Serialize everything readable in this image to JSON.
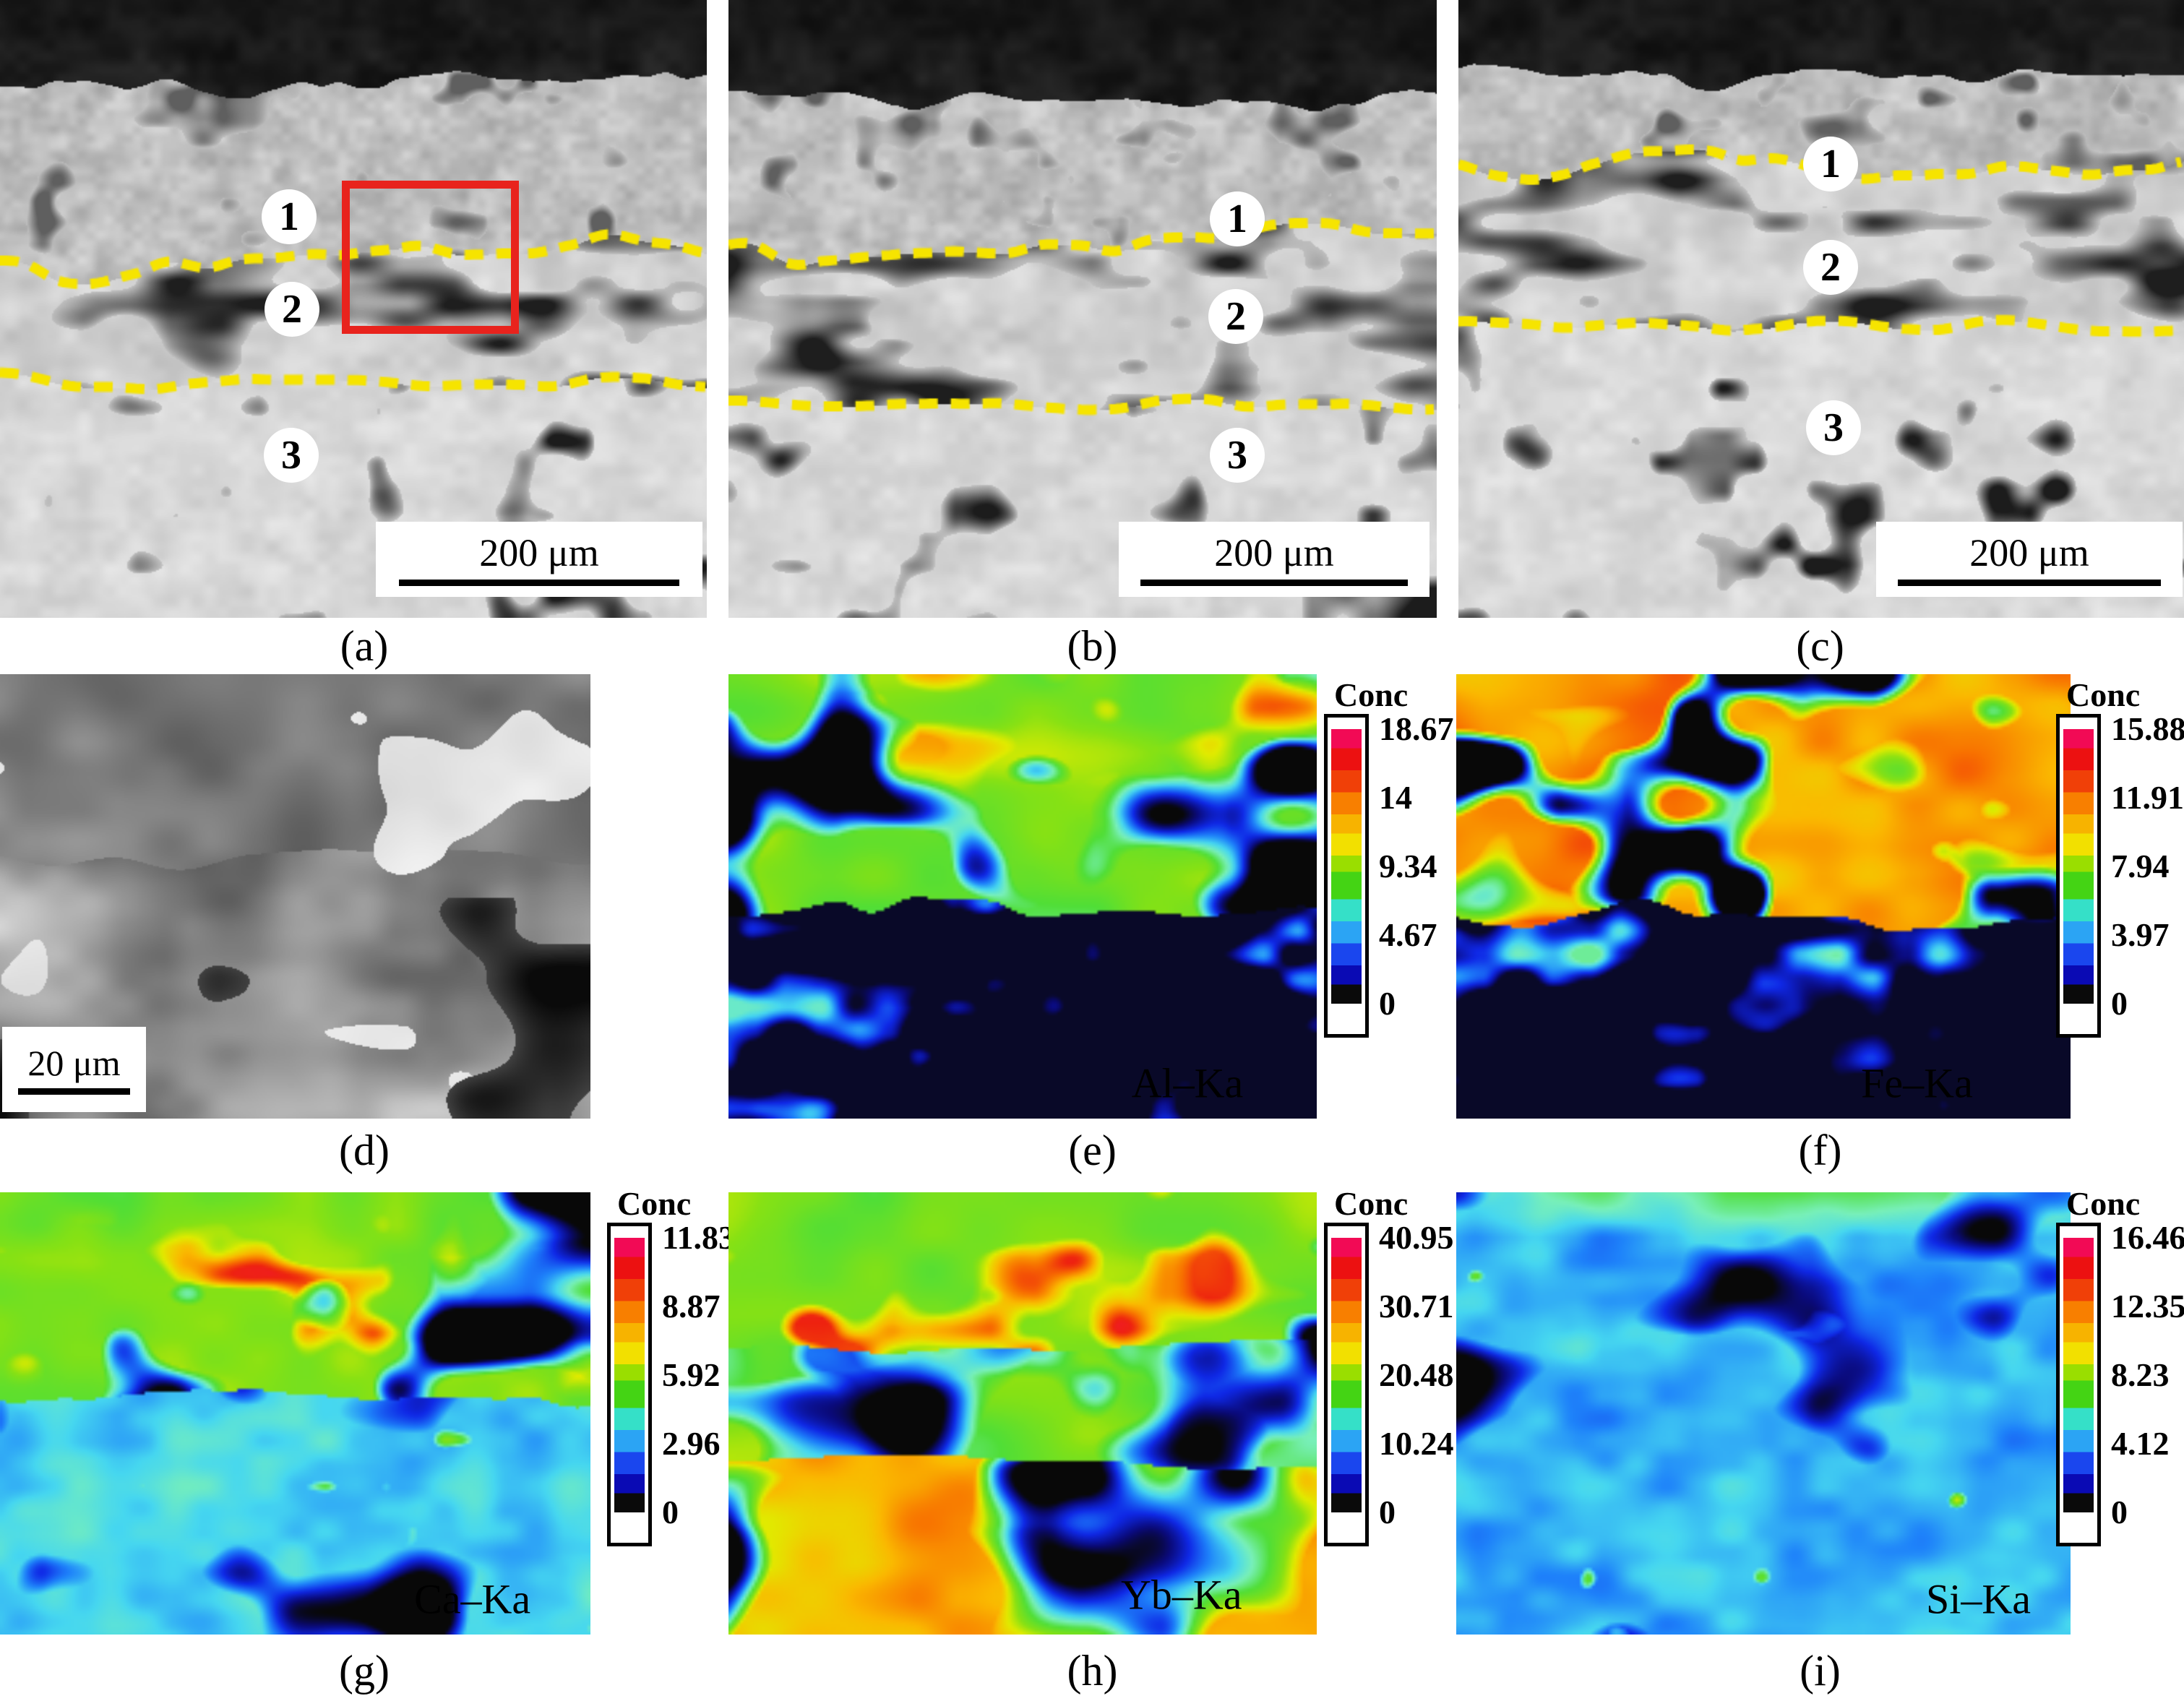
{
  "panels": {
    "a": {
      "caption": "(a)",
      "layer1": "1",
      "layer2": "2",
      "layer3": "3",
      "scale_bar": "200 μm"
    },
    "b": {
      "caption": "(b)",
      "layer1": "1",
      "layer2": "2",
      "layer3": "3",
      "scale_bar": "200 μm"
    },
    "c": {
      "caption": "(c)",
      "layer1": "1",
      "layer2": "2",
      "layer3": "3",
      "scale_bar": "200 μm"
    },
    "d": {
      "caption": "(d)",
      "scale_bar": "20 μm"
    },
    "e": {
      "caption": "(e)",
      "element": "Al–Ka",
      "colorbar_title": "Conc",
      "ticks": [
        "18.67",
        "14",
        "9.34",
        "4.67",
        "0"
      ]
    },
    "f": {
      "caption": "(f)",
      "element": "Fe–Ka",
      "colorbar_title": "Conc",
      "ticks": [
        "15.88",
        "11.91",
        "7.94",
        "3.97",
        "0"
      ]
    },
    "g": {
      "caption": "(g)",
      "element": "Ca–Ka",
      "colorbar_title": "Conc",
      "ticks": [
        "11.83",
        "8.87",
        "5.92",
        "2.96",
        "0"
      ]
    },
    "h": {
      "caption": "(h)",
      "element": "Yb–Ka",
      "colorbar_title": "Conc",
      "ticks": [
        "40.95",
        "30.71",
        "20.48",
        "10.24",
        "0"
      ]
    },
    "i": {
      "caption": "(i)",
      "element": "Si–Ka",
      "colorbar_title": "Conc",
      "ticks": [
        "16.46",
        "12.35",
        "8.23",
        "4.12",
        "0"
      ]
    }
  },
  "colors": {
    "boundary_line": "#f6e400",
    "roi_box": "#e8231d",
    "colorbar_gradient_top_to_bottom": [
      "#f20a55",
      "#ec1111",
      "#f04008",
      "#f87f00",
      "#f7b300",
      "#f2e000",
      "#9ade00",
      "#44d414",
      "#35e0c8",
      "#2ba4f4",
      "#1a46ee",
      "#0a0ab4",
      "#0a0a0a"
    ]
  }
}
